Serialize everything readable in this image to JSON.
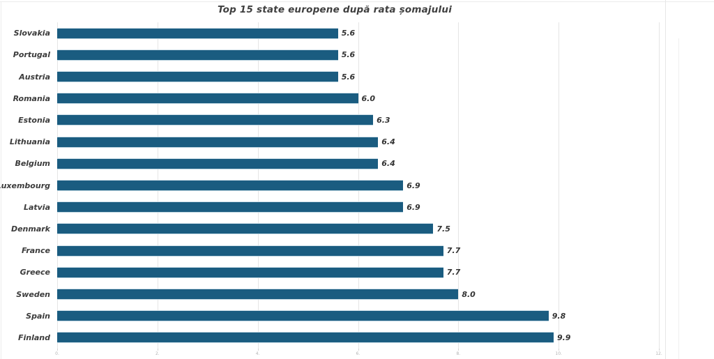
{
  "chart_data": {
    "type": "bar",
    "orientation": "horizontal",
    "title": "Top 15 state europene după rata șomajului",
    "categories": [
      "Slovakia",
      "Portugal",
      "Austria",
      "Romania",
      "Estonia",
      "Lithuania",
      "Belgium",
      "Luxembourg",
      "Latvia",
      "Denmark",
      "France",
      "Greece",
      "Sweden",
      "Spain",
      "Finland"
    ],
    "values": [
      5.6,
      5.6,
      5.6,
      6.0,
      6.3,
      6.4,
      6.4,
      6.9,
      6.9,
      7.5,
      7.7,
      7.7,
      8.0,
      9.8,
      9.9
    ],
    "value_labels": [
      "5.6",
      "5.6",
      "5.6",
      "6.0",
      "6.3",
      "6.4",
      "6.4",
      "6.9",
      "6.9",
      "7.5",
      "7.7",
      "7.7",
      "8.0",
      "9.8",
      "9.9"
    ],
    "xlabel": "",
    "ylabel": "",
    "xlim": [
      0,
      12
    ],
    "x_ticks": [
      0,
      2,
      4,
      6,
      8,
      10,
      12
    ],
    "x_tick_labels": [
      "0.",
      "2.",
      "4.",
      "6.",
      "8.",
      "10.",
      "12."
    ],
    "grid": true,
    "legend": false
  },
  "colors": {
    "bar": "#1a5c80",
    "gridline": "#e5e5e5",
    "category_label": "#3b3b3b",
    "value_label": "#333333",
    "tick_label": "#b2b2b2",
    "title": "#3f3f3f",
    "frame_line": "#ececec",
    "background": "#ffffff"
  }
}
